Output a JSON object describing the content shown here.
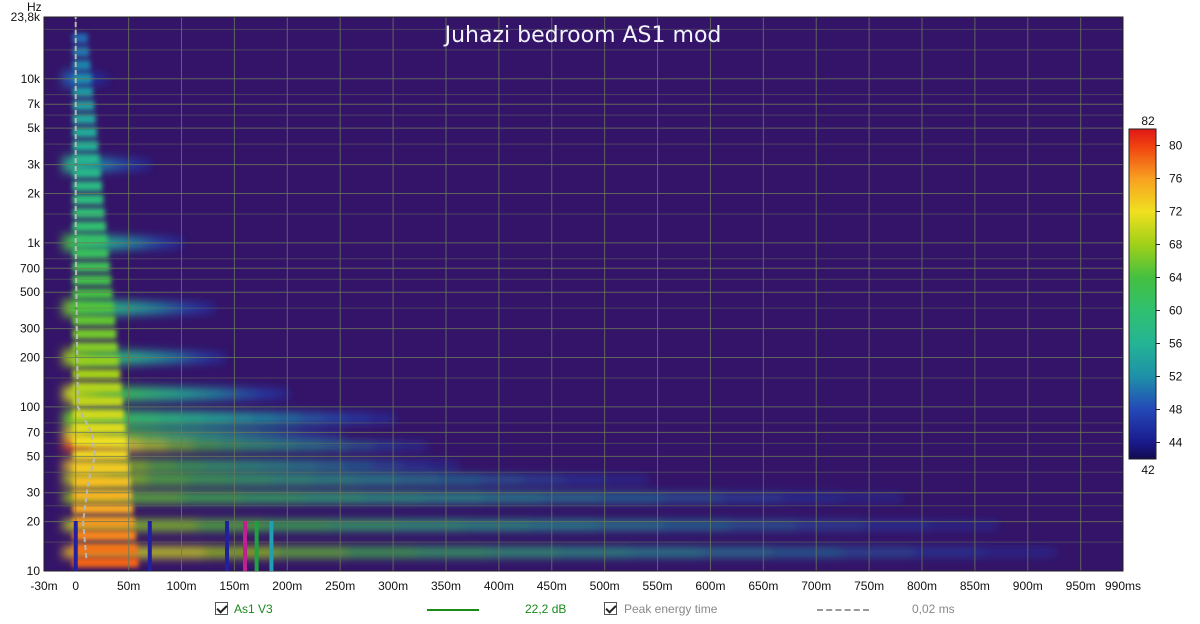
{
  "chart_data": {
    "type": "heatmap",
    "subtype": "spectrogram",
    "title": "Juhazi bedroom AS1 mod",
    "ylabel": "Hz",
    "x_ticks": [
      "-30m",
      "0",
      "50m",
      "100m",
      "150m",
      "200m",
      "250m",
      "300m",
      "350m",
      "400m",
      "450m",
      "500m",
      "550m",
      "600m",
      "650m",
      "700m",
      "750m",
      "800m",
      "850m",
      "900m",
      "950m",
      "990ms"
    ],
    "x_tick_values_ms": [
      -30,
      0,
      50,
      100,
      150,
      200,
      250,
      300,
      350,
      400,
      450,
      500,
      550,
      600,
      650,
      700,
      750,
      800,
      850,
      900,
      950,
      990
    ],
    "xlim_ms": [
      -30,
      990
    ],
    "y_scale": "log",
    "y_ticks": [
      "10",
      "20",
      "30",
      "50",
      "70",
      "100",
      "200",
      "300",
      "500",
      "700",
      "1k",
      "2k",
      "3k",
      "5k",
      "7k",
      "10k",
      "23,8k"
    ],
    "y_tick_values_hz": [
      10,
      20,
      30,
      50,
      70,
      100,
      200,
      300,
      500,
      700,
      1000,
      2000,
      3000,
      5000,
      7000,
      10000,
      23800
    ],
    "ylim_hz": [
      10,
      23800
    ],
    "colorbar": {
      "min": 42,
      "max": 82,
      "ticks": [
        "80",
        "76",
        "72",
        "68",
        "64",
        "60",
        "56",
        "52",
        "48",
        "44"
      ],
      "tick_values": [
        80,
        76,
        72,
        68,
        64,
        60,
        56,
        52,
        48,
        44
      ],
      "end_labels": [
        "82",
        "42"
      ]
    },
    "energy_ridges": [
      {
        "freq_hz": 13,
        "decay_ms": 925,
        "peak_db": 74
      },
      {
        "freq_hz": 19,
        "decay_ms": 870,
        "peak_db": 70
      },
      {
        "freq_hz": 28,
        "decay_ms": 780,
        "peak_db": 68
      },
      {
        "freq_hz": 36,
        "decay_ms": 540,
        "peak_db": 70
      },
      {
        "freq_hz": 44,
        "decay_ms": 360,
        "peak_db": 73
      },
      {
        "freq_hz": 58,
        "decay_ms": 330,
        "peak_db": 79
      },
      {
        "freq_hz": 68,
        "decay_ms": 250,
        "peak_db": 72
      },
      {
        "freq_hz": 85,
        "decay_ms": 300,
        "peak_db": 66
      },
      {
        "freq_hz": 120,
        "decay_ms": 200,
        "peak_db": 70
      },
      {
        "freq_hz": 200,
        "decay_ms": 140,
        "peak_db": 68
      },
      {
        "freq_hz": 400,
        "decay_ms": 130,
        "peak_db": 66
      },
      {
        "freq_hz": 1000,
        "decay_ms": 100,
        "peak_db": 64
      },
      {
        "freq_hz": 3000,
        "decay_ms": 70,
        "peak_db": 58
      },
      {
        "freq_hz": 10000,
        "decay_ms": 30,
        "peak_db": 50
      }
    ],
    "peak_energy_time": [
      {
        "freq_hz": 12,
        "time_ms": 10
      },
      {
        "freq_hz": 20,
        "time_ms": 7
      },
      {
        "freq_hz": 35,
        "time_ms": 12
      },
      {
        "freq_hz": 50,
        "time_ms": 18
      },
      {
        "freq_hz": 70,
        "time_ms": 15
      },
      {
        "freq_hz": 100,
        "time_ms": 2
      },
      {
        "freq_hz": 1000,
        "time_ms": 0
      },
      {
        "freq_hz": 23800,
        "time_ms": 0
      }
    ],
    "markers": [
      {
        "time_ms": 0,
        "color": "#2020a0"
      },
      {
        "time_ms": 70,
        "color": "#2020a0"
      },
      {
        "time_ms": 143,
        "color": "#2020a0"
      },
      {
        "time_ms": 160,
        "color": "#c02090"
      },
      {
        "time_ms": 171,
        "color": "#20a040"
      },
      {
        "time_ms": 185,
        "color": "#20a0b0"
      }
    ],
    "legend": [
      {
        "label": "As1 V3",
        "value": "22,2 dB",
        "color": "#1a8a1a",
        "style": "solid",
        "checked": true
      },
      {
        "label": "Peak energy time",
        "value": "0,02 ms",
        "color": "#999999",
        "style": "dashed",
        "checked": true
      }
    ],
    "colors": {
      "background": "#341468",
      "grid": "#6a7a5a"
    }
  }
}
